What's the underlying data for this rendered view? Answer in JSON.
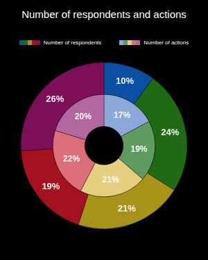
{
  "chart_data": {
    "type": "doughnut",
    "title": "Number of respondents and actions",
    "legend": "top",
    "data_labels": true,
    "series": [
      {
        "name": "Number of respondents",
        "colors": [
          "#0b4fa3",
          "#1f6a12",
          "#a8931a",
          "#a5121f",
          "#7d0f58"
        ],
        "values": [
          10,
          24,
          21,
          19,
          26
        ],
        "value_labels": [
          "10%",
          "24%",
          "21%",
          "19%",
          "26%"
        ]
      },
      {
        "name": "Number of actions",
        "colors": [
          "#8ca8d8",
          "#5f9a60",
          "#e6cf7f",
          "#dc6e7a",
          "#b3679f"
        ],
        "values": [
          17,
          19,
          21,
          22,
          20
        ],
        "value_labels": [
          "17%",
          "19%",
          "21%",
          "22%",
          "20%"
        ]
      }
    ]
  }
}
